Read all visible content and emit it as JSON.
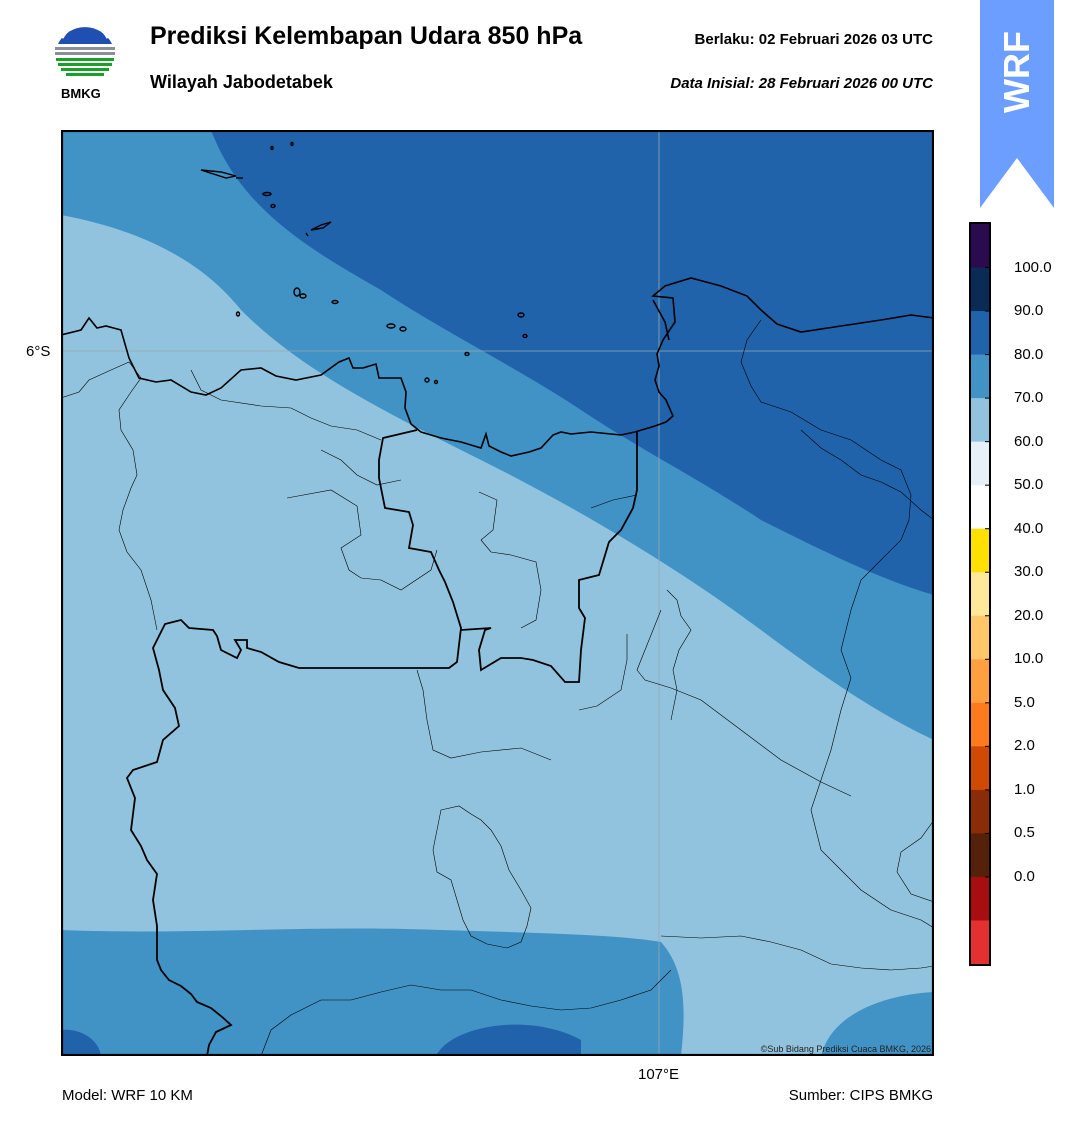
{
  "header": {
    "title": "Prediksi Kelembapan Udara 850 hPa",
    "subtitle": "Wilayah Jabodetabek",
    "valid_label": "Berlaku:  02 Februari 2026 03 UTC",
    "init_label": "Data Inisial:  28 Februari 2026 00 UTC"
  },
  "logo": {
    "text": "BMKG",
    "icon": "bmkg-logo-icon"
  },
  "badge": {
    "text": "WRF",
    "color": "#6c9eff"
  },
  "map": {
    "lat_label": "6°S",
    "lon_label": "107°E",
    "credit": "©Sub Bidang Prediksi Cuaca BMKG, 2026",
    "palette": {
      "band_60_70": "#91c3de",
      "band_70_80": "#4193c6",
      "band_80_90": "#2163ab"
    }
  },
  "colorbar": {
    "labels": [
      "100.0",
      "90.0",
      "80.0",
      "70.0",
      "60.0",
      "50.0",
      "40.0",
      "30.0",
      "20.0",
      "10.0",
      "5.0",
      "2.0",
      "1.0",
      "0.5",
      "0.0"
    ],
    "colors": [
      "#2b0b50",
      "#0b2a55",
      "#2163ab",
      "#4193c6",
      "#91c3de",
      "#e6f0f7",
      "#ffffff",
      "#ffe000",
      "#ffe89a",
      "#ffc76a",
      "#ffa040",
      "#ff7a1e",
      "#d04a06",
      "#8b2c08",
      "#55210b",
      "#a80e10",
      "#e33030"
    ]
  },
  "footer": {
    "model": "Model: WRF 10 KM",
    "source": "Sumber: CIPS BMKG"
  }
}
